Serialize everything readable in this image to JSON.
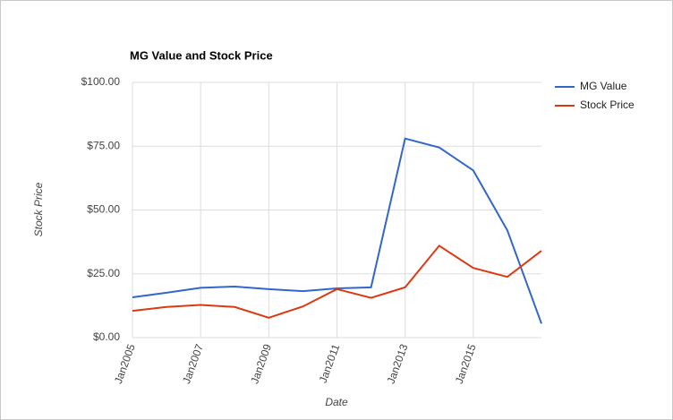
{
  "chart_data": {
    "type": "line",
    "title": "MG Value and Stock Price",
    "x_label": "Date",
    "y_label": "Stock Price",
    "x": [
      2005,
      2006,
      2007,
      2008,
      2009,
      2010,
      2011,
      2012,
      2013,
      2014,
      2015,
      2016,
      2017
    ],
    "series": [
      {
        "name": "MG Value",
        "color": "#3366cc",
        "values": [
          15.8,
          17.6,
          19.5,
          20,
          19,
          18.2,
          19.3,
          19.7,
          78,
          74.5,
          65.5,
          42,
          5.5
        ]
      },
      {
        "name": "Stock Price",
        "color": "#dc3912",
        "values": [
          10.5,
          12,
          12.8,
          12,
          7.8,
          12.2,
          19,
          15.6,
          19.7,
          36,
          27.3,
          23.8,
          34
        ]
      }
    ],
    "xlim": [
      2005,
      2017
    ],
    "xticks": [
      {
        "value": 2005,
        "label": "Jan2005"
      },
      {
        "value": 2007,
        "label": "Jan2007"
      },
      {
        "value": 2009,
        "label": "Jan2009"
      },
      {
        "value": 2011,
        "label": "Jan2011"
      },
      {
        "value": 2013,
        "label": "Jan2013"
      },
      {
        "value": 2015,
        "label": "Jan2015"
      }
    ],
    "ylim": [
      0,
      100
    ],
    "yticks": [
      {
        "value": 0,
        "label": "$0.00"
      },
      {
        "value": 25,
        "label": "$25.00"
      },
      {
        "value": 50,
        "label": "$50.00"
      },
      {
        "value": 75,
        "label": "$75.00"
      },
      {
        "value": 100,
        "label": "$100.00"
      }
    ],
    "grid": true,
    "legend": "right"
  }
}
